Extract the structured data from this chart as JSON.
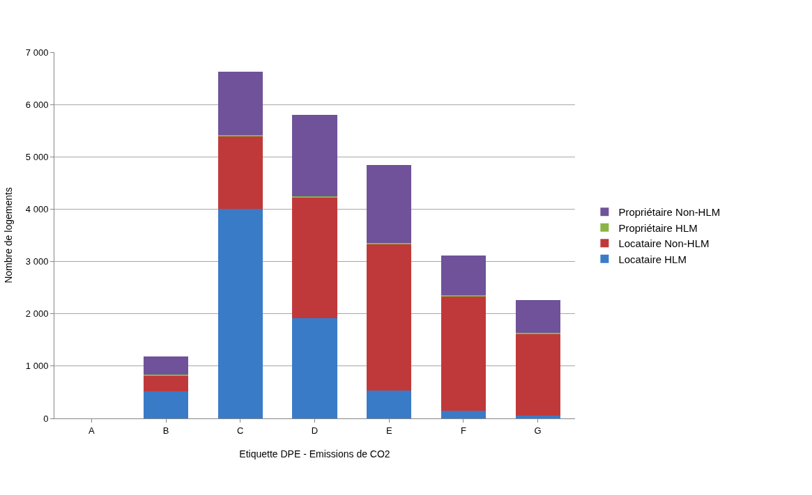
{
  "chart_data": {
    "type": "bar",
    "stacked": true,
    "xlabel": "Etiquette DPE - Emissions de CO2",
    "ylabel": "Nombre de logements",
    "categories": [
      "A",
      "B",
      "C",
      "D",
      "E",
      "F",
      "G"
    ],
    "series": [
      {
        "name": "Locataire HLM",
        "color": "#3a7bc8",
        "values": [
          0,
          520,
          4000,
          1910,
          530,
          150,
          50
        ]
      },
      {
        "name": "Locataire Non-HLM",
        "color": "#c0393a",
        "values": [
          0,
          300,
          1390,
          2310,
          2800,
          2180,
          1570
        ]
      },
      {
        "name": "Propriétaire HLM",
        "color": "#8ab446",
        "values": [
          0,
          20,
          20,
          20,
          20,
          30,
          20
        ]
      },
      {
        "name": "Propriétaire Non-HLM",
        "color": "#6f529a",
        "values": [
          0,
          340,
          1220,
          1560,
          1500,
          760,
          620
        ]
      }
    ],
    "ylim": [
      0,
      7000
    ],
    "yticks": [
      0,
      {
        "value": 1000,
        "label": "1 000"
      },
      {
        "value": 2000,
        "label": "2 000"
      },
      {
        "value": 3000,
        "label": "3 000"
      },
      {
        "value": 4000,
        "label": "4 000"
      },
      {
        "value": 5000,
        "label": "5 000"
      },
      {
        "value": 6000,
        "label": "6 000"
      },
      {
        "value": 7000,
        "label": "7 000"
      }
    ],
    "grid": "y",
    "legend": "right"
  }
}
